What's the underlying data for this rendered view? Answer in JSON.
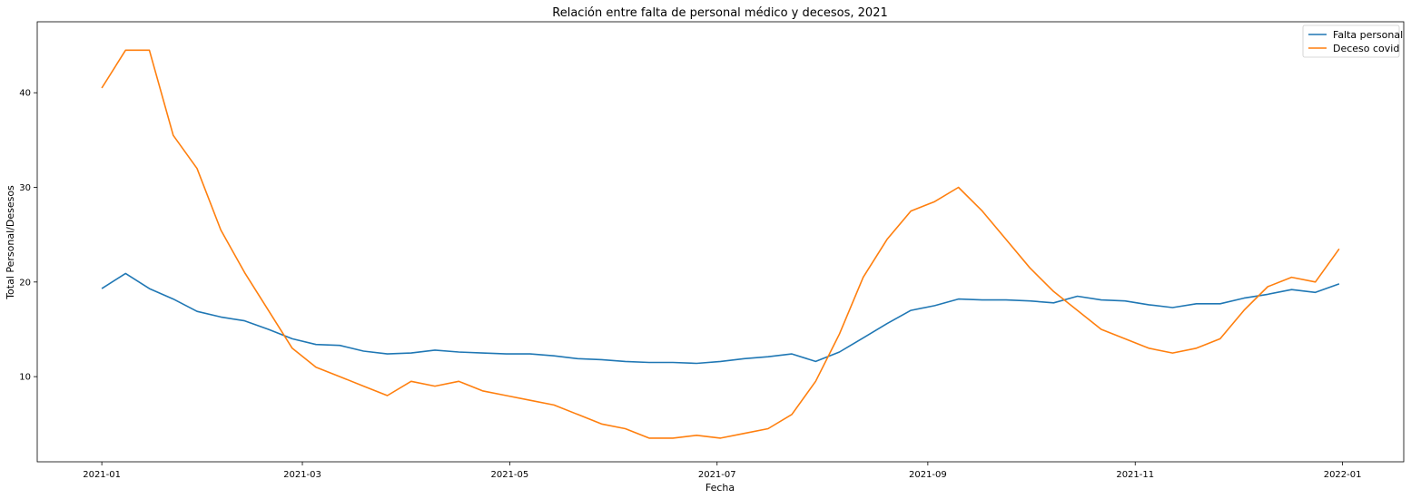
{
  "chart_data": {
    "type": "line",
    "title": "Relación entre falta de personal médico y decesos, 2021",
    "xlabel": "Fecha",
    "ylabel": "Total Personal/Desesos",
    "x_ticks": [
      "2021-01",
      "2021-03",
      "2021-05",
      "2021-07",
      "2021-09",
      "2021-11",
      "2022-01"
    ],
    "y_ticks": [
      10,
      20,
      30,
      40
    ],
    "xlim": [
      "2020-12-13",
      "2022-01-19"
    ],
    "ylim": [
      1,
      47.5
    ],
    "grid": false,
    "legend_position": "top-right",
    "x": [
      "2021-01-01",
      "2021-01-08",
      "2021-01-15",
      "2021-01-22",
      "2021-01-29",
      "2021-02-05",
      "2021-02-12",
      "2021-02-19",
      "2021-02-26",
      "2021-03-05",
      "2021-03-12",
      "2021-03-19",
      "2021-03-26",
      "2021-04-02",
      "2021-04-09",
      "2021-04-16",
      "2021-04-23",
      "2021-04-30",
      "2021-05-07",
      "2021-05-14",
      "2021-05-21",
      "2021-05-28",
      "2021-06-04",
      "2021-06-11",
      "2021-06-18",
      "2021-06-25",
      "2021-07-02",
      "2021-07-09",
      "2021-07-16",
      "2021-07-23",
      "2021-07-30",
      "2021-08-06",
      "2021-08-13",
      "2021-08-20",
      "2021-08-27",
      "2021-09-03",
      "2021-09-10",
      "2021-09-17",
      "2021-09-24",
      "2021-10-01",
      "2021-10-08",
      "2021-10-15",
      "2021-10-22",
      "2021-10-29",
      "2021-11-05",
      "2021-11-12",
      "2021-11-19",
      "2021-11-26",
      "2021-12-03",
      "2021-12-10",
      "2021-12-17",
      "2021-12-24",
      "2021-12-31"
    ],
    "series": [
      {
        "name": "Falta personal",
        "color": "#1f77b4",
        "values": [
          19.3,
          20.9,
          19.3,
          18.2,
          16.9,
          16.3,
          15.9,
          15.0,
          14.0,
          13.4,
          13.3,
          12.7,
          12.4,
          12.5,
          12.8,
          12.6,
          12.5,
          12.4,
          12.4,
          12.2,
          11.9,
          11.8,
          11.6,
          11.5,
          11.5,
          11.4,
          11.6,
          11.9,
          12.1,
          12.4,
          11.6,
          12.6,
          14.1,
          15.6,
          17.0,
          17.5,
          18.2,
          18.1,
          18.1,
          18.0,
          17.8,
          18.5,
          18.1,
          18.0,
          17.6,
          17.3,
          17.7,
          17.7,
          18.3,
          18.7,
          19.2,
          18.9,
          19.8
        ]
      },
      {
        "name": "Deceso covid",
        "color": "#ff7f0e",
        "values": [
          40.5,
          44.5,
          44.5,
          35.5,
          32.0,
          25.5,
          21.0,
          17.0,
          13.0,
          11.0,
          10.0,
          9.0,
          8.0,
          9.5,
          9.0,
          9.5,
          8.5,
          8.0,
          7.5,
          7.0,
          6.0,
          5.0,
          4.5,
          3.5,
          3.5,
          3.8,
          3.5,
          4.0,
          4.5,
          6.0,
          9.5,
          14.5,
          20.5,
          24.5,
          27.5,
          28.5,
          30.0,
          27.5,
          24.5,
          21.5,
          19.0,
          17.0,
          15.0,
          14.0,
          13.0,
          12.5,
          13.0,
          14.0,
          17.0,
          19.5,
          20.5,
          20.0,
          23.5
        ]
      }
    ]
  }
}
